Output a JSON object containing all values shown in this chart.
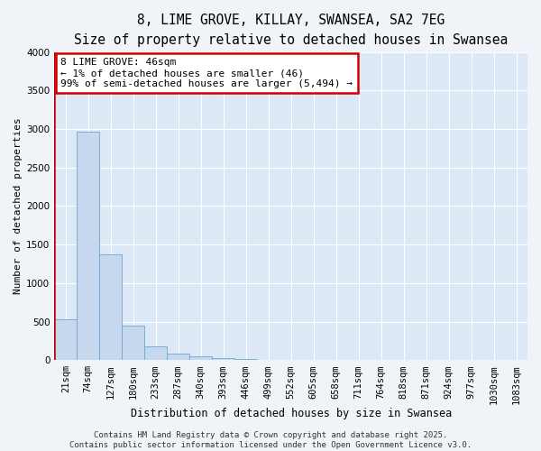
{
  "title": "8, LIME GROVE, KILLAY, SWANSEA, SA2 7EG",
  "subtitle": "Size of property relative to detached houses in Swansea",
  "xlabel": "Distribution of detached houses by size in Swansea",
  "ylabel": "Number of detached properties",
  "categories": [
    "21sqm",
    "74sqm",
    "127sqm",
    "180sqm",
    "233sqm",
    "287sqm",
    "340sqm",
    "393sqm",
    "446sqm",
    "499sqm",
    "552sqm",
    "605sqm",
    "658sqm",
    "711sqm",
    "764sqm",
    "818sqm",
    "871sqm",
    "924sqm",
    "977sqm",
    "1030sqm",
    "1083sqm"
  ],
  "values": [
    530,
    2970,
    1370,
    450,
    180,
    90,
    50,
    30,
    10,
    2,
    1,
    0,
    0,
    0,
    0,
    0,
    0,
    0,
    0,
    0,
    0
  ],
  "bar_color": "#c5d8ed",
  "bar_edge_color": "#6ea6d0",
  "highlight_line_color": "#c00000",
  "ylim": [
    0,
    4000
  ],
  "yticks": [
    0,
    500,
    1000,
    1500,
    2000,
    2500,
    3000,
    3500,
    4000
  ],
  "fig_bg_color": "#f0f4f8",
  "plot_bg_color": "#dce8f5",
  "annotation_text": "8 LIME GROVE: 46sqm\n← 1% of detached houses are smaller (46)\n99% of semi-detached houses are larger (5,494) →",
  "annotation_box_facecolor": "#ffffff",
  "annotation_box_edgecolor": "#cc0000",
  "footer": "Contains HM Land Registry data © Crown copyright and database right 2025.\nContains public sector information licensed under the Open Government Licence v3.0.",
  "title_fontsize": 10.5,
  "subtitle_fontsize": 9.5,
  "xlabel_fontsize": 8.5,
  "ylabel_fontsize": 8,
  "tick_fontsize": 7.5,
  "annotation_fontsize": 8,
  "footer_fontsize": 6.5
}
